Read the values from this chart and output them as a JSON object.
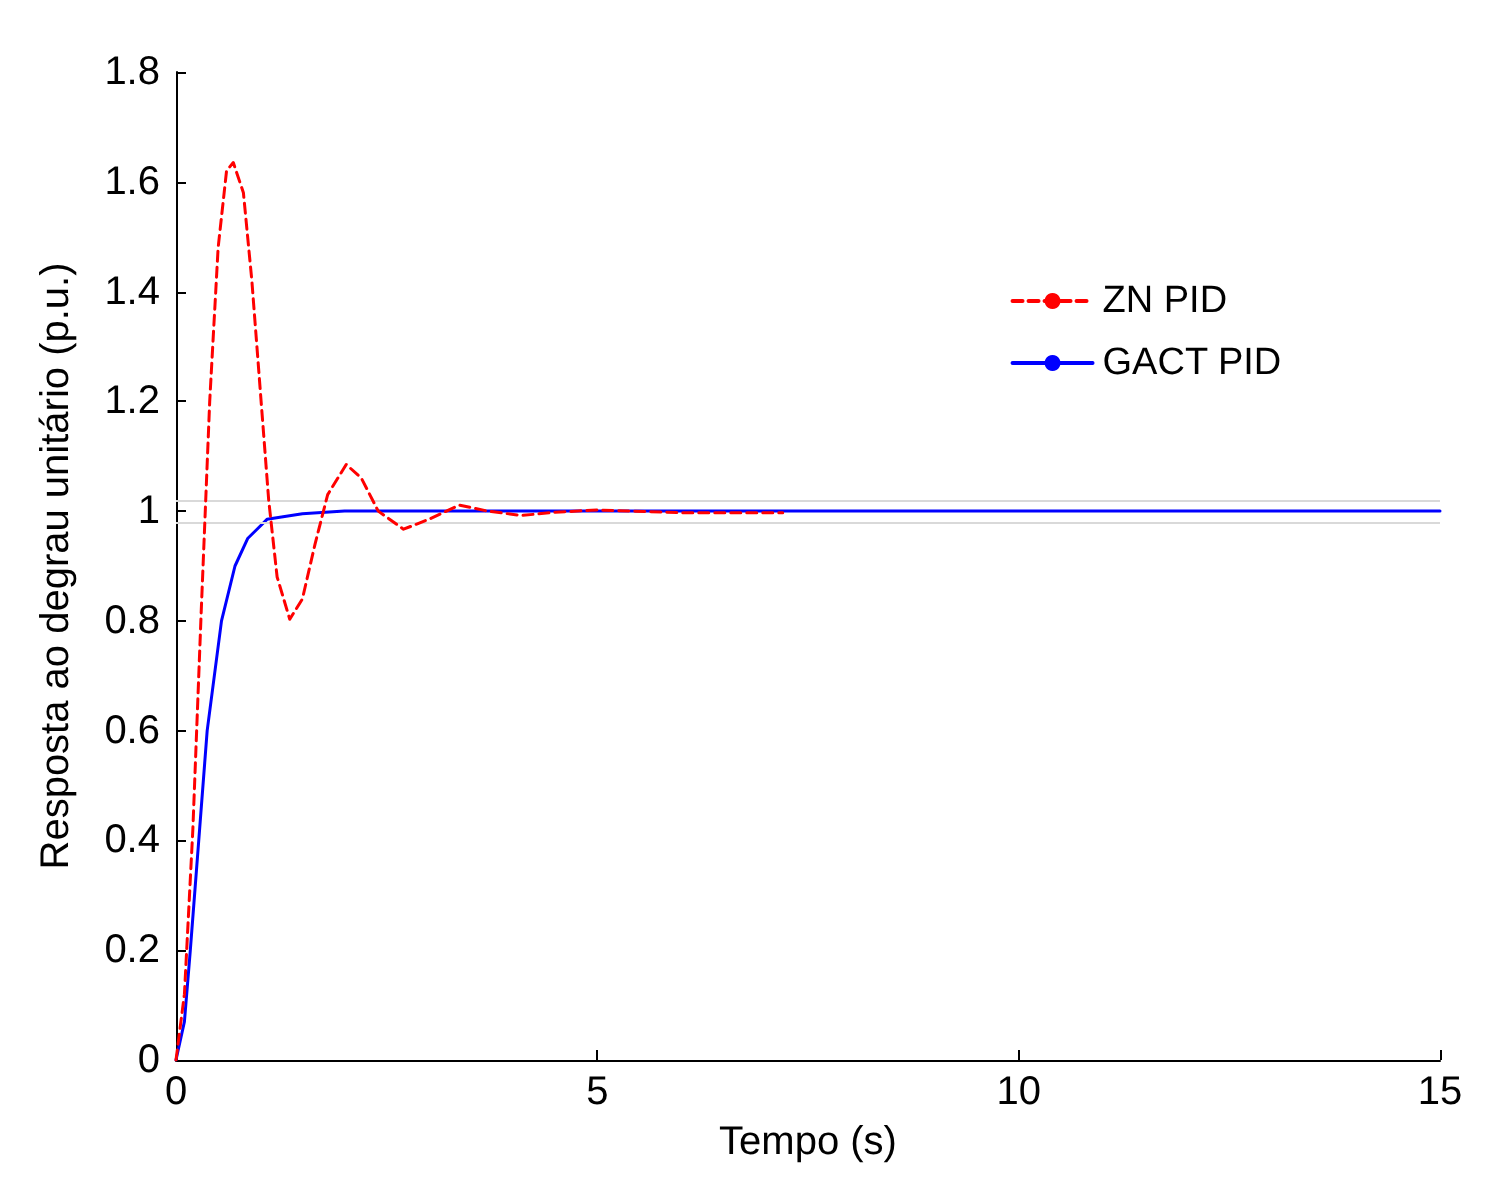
{
  "chart_data": {
    "type": "line",
    "xlabel": "Tempo (s)",
    "ylabel": "Resposta ao degrau unitário (p.u.)",
    "xlim": [
      0,
      15
    ],
    "xticks": [
      0,
      5,
      10,
      15
    ],
    "ylim": [
      0,
      1.8
    ],
    "yticks": [
      0,
      0.2,
      0.4,
      0.6,
      0.8,
      1,
      1.2,
      1.4,
      1.6,
      1.8
    ],
    "grid": false,
    "legend": "top right",
    "marker": "none",
    "series": [
      {
        "name": "ZN PID",
        "color": "#ff0000",
        "line_style": "dashed",
        "x": [
          0,
          0.1,
          0.2,
          0.3,
          0.4,
          0.5,
          0.6,
          0.68,
          0.8,
          0.9,
          1.0,
          1.1,
          1.2,
          1.35,
          1.5,
          1.65,
          1.8,
          2.02,
          2.2,
          2.4,
          2.7,
          3.0,
          3.36,
          3.7,
          4.1,
          4.5,
          5,
          6,
          7.2
        ],
        "values": [
          0,
          0.12,
          0.42,
          0.82,
          1.2,
          1.48,
          1.62,
          1.635,
          1.58,
          1.42,
          1.22,
          1.02,
          0.88,
          0.803,
          0.84,
          0.94,
          1.03,
          1.085,
          1.06,
          1.0,
          0.967,
          0.985,
          1.011,
          1.0,
          0.992,
          0.998,
          1.002,
          0.997,
          0.997
        ]
      },
      {
        "name": "GACT PID",
        "color": "#0000ff",
        "line_style": "solid",
        "x": [
          0,
          0.1,
          0.17,
          0.27,
          0.37,
          0.54,
          0.7,
          0.85,
          1.08,
          1.5,
          2,
          15
        ],
        "values": [
          0,
          0.07,
          0.2,
          0.4,
          0.6,
          0.8,
          0.9,
          0.95,
          0.985,
          0.995,
          1.0,
          1.0
        ]
      }
    ],
    "ref_lines": [
      {
        "axis": "y",
        "value": 1.02,
        "color": "#d9d9d9"
      },
      {
        "axis": "y",
        "value": 0.98,
        "color": "#d9d9d9"
      }
    ]
  }
}
